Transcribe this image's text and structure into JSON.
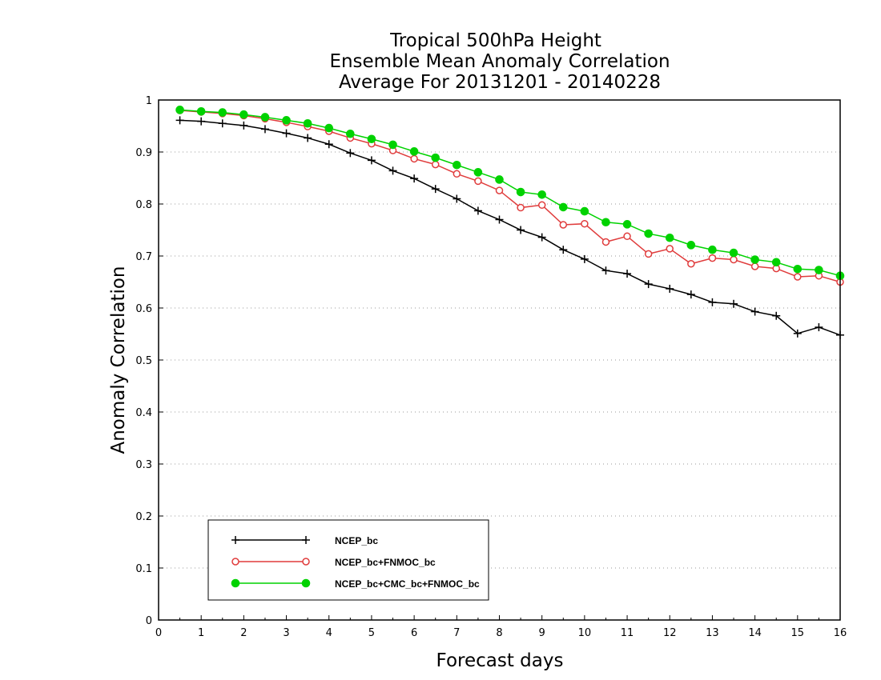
{
  "chart_data": {
    "type": "line",
    "title": [
      "Tropical 500hPa Height",
      "Ensemble Mean Anomaly Correlation",
      "Average For 20131201 - 20140228"
    ],
    "xlabel": "Forecast days",
    "ylabel": "Anomaly Correlation",
    "xlim": [
      0,
      16
    ],
    "ylim": [
      0,
      1
    ],
    "xticks": [
      "0",
      "1",
      "2",
      "3",
      "4",
      "5",
      "6",
      "7",
      "8",
      "9",
      "10",
      "11",
      "12",
      "13",
      "14",
      "15",
      "16"
    ],
    "yticks": [
      "0",
      "0.1",
      "0.2",
      "0.3",
      "0.4",
      "0.5",
      "0.6",
      "0.7",
      "0.8",
      "0.9",
      "1"
    ],
    "grid": "horizontal dotted",
    "legend_position": "bottom-left",
    "x": [
      0.5,
      1,
      1.5,
      2,
      2.5,
      3,
      3.5,
      4,
      4.5,
      5,
      5.5,
      6,
      6.5,
      7,
      7.5,
      8,
      8.5,
      9,
      9.5,
      10,
      10.5,
      11,
      11.5,
      12,
      12.5,
      13,
      13.5,
      14,
      14.5,
      15,
      15.5,
      16
    ],
    "series": [
      {
        "name": "NCEP_bc",
        "color": "#000000",
        "marker": "plus",
        "values": [
          0.961,
          0.959,
          0.955,
          0.951,
          0.944,
          0.936,
          0.927,
          0.915,
          0.898,
          0.884,
          0.864,
          0.849,
          0.829,
          0.81,
          0.787,
          0.77,
          0.75,
          0.736,
          0.712,
          0.694,
          0.672,
          0.666,
          0.646,
          0.637,
          0.626,
          0.611,
          0.608,
          0.593,
          0.585,
          0.551,
          0.563,
          0.548
        ]
      },
      {
        "name": "NCEP_bc+FNMOC_bc",
        "color": "#e03c3c",
        "marker": "open-circle",
        "values": [
          0.98,
          0.977,
          0.974,
          0.97,
          0.964,
          0.957,
          0.949,
          0.94,
          0.927,
          0.916,
          0.903,
          0.887,
          0.876,
          0.858,
          0.844,
          0.826,
          0.793,
          0.798,
          0.76,
          0.762,
          0.727,
          0.738,
          0.704,
          0.714,
          0.685,
          0.696,
          0.693,
          0.68,
          0.676,
          0.66,
          0.662,
          0.65
        ]
      },
      {
        "name": "NCEP_bc+CMC_bc+FNMOC_bc",
        "color": "#00d200",
        "marker": "filled-circle",
        "values": [
          0.981,
          0.978,
          0.976,
          0.972,
          0.967,
          0.961,
          0.955,
          0.946,
          0.935,
          0.925,
          0.914,
          0.901,
          0.889,
          0.875,
          0.861,
          0.847,
          0.823,
          0.818,
          0.794,
          0.786,
          0.765,
          0.761,
          0.743,
          0.735,
          0.721,
          0.712,
          0.706,
          0.693,
          0.688,
          0.675,
          0.673,
          0.662
        ]
      }
    ]
  }
}
